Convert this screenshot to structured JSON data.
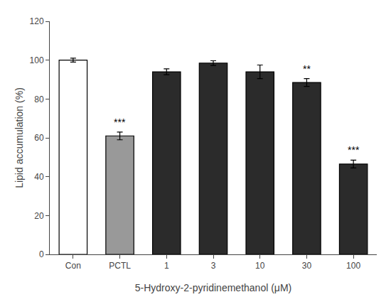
{
  "chart_data": {
    "type": "bar",
    "categories": [
      "Con",
      "PCTL",
      "1",
      "3",
      "10",
      "30",
      "100"
    ],
    "values": [
      100.0,
      61.0,
      94.0,
      98.5,
      94.0,
      88.5,
      46.5
    ],
    "errors": [
      1.0,
      2.0,
      1.5,
      1.2,
      3.5,
      2.0,
      2.0
    ],
    "colors": [
      "#ffffff",
      "#999999",
      "#2b2b2b",
      "#2b2b2b",
      "#2b2b2b",
      "#2b2b2b",
      "#2b2b2b"
    ],
    "annotations": [
      {
        "category": "PCTL",
        "text": "***"
      },
      {
        "category": "30",
        "text": "**"
      },
      {
        "category": "100",
        "text": "***"
      }
    ],
    "xlabel": "5-Hydroxy-2-pyridinemethanol (μM)",
    "ylabel": "Lipid accumulation (%)",
    "ylim": [
      0,
      120
    ],
    "yticks": [
      0,
      20,
      40,
      60,
      80,
      100,
      120
    ],
    "grid": false
  }
}
